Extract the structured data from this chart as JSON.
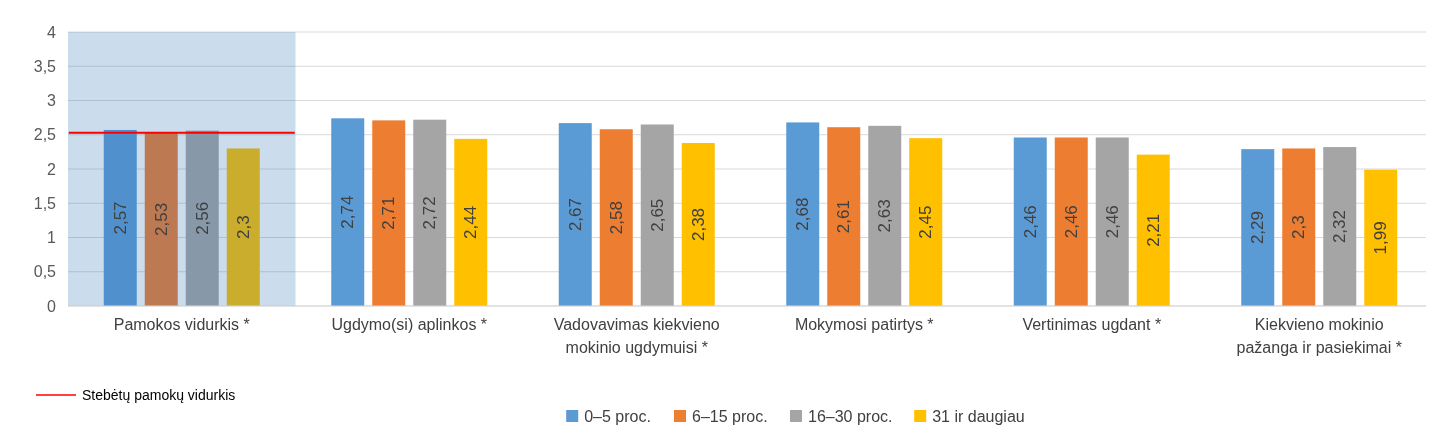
{
  "chart_data": {
    "type": "bar",
    "categories": [
      "Pamokos vidurkis *",
      "Ugdymo(si) aplinkos *",
      "Vadovavimas kiekvieno mokinio ugdymuisi *",
      "Mokymosi patirtys *",
      "Vertinimas ugdant  *",
      "Kiekvieno mokinio pažanga ir pasiekimai *"
    ],
    "series": [
      {
        "name": "0–5 proc.",
        "color": "#5b9bd5",
        "values": [
          2.57,
          2.74,
          2.67,
          2.68,
          2.46,
          2.29
        ],
        "value_labels": [
          "2,57",
          "2,74",
          "2,67",
          "2,68",
          "2,46",
          "2,29"
        ]
      },
      {
        "name": "6–15 proc.",
        "color": "#ed7d31",
        "values": [
          2.53,
          2.71,
          2.58,
          2.61,
          2.46,
          2.3
        ],
        "value_labels": [
          "2,53",
          "2,71",
          "2,58",
          "2,61",
          "2,46",
          "2,3"
        ]
      },
      {
        "name": "16–30 proc.",
        "color": "#a5a5a5",
        "values": [
          2.56,
          2.72,
          2.65,
          2.63,
          2.46,
          2.32
        ],
        "value_labels": [
          "2,56",
          "2,72",
          "2,65",
          "2,63",
          "2,46",
          "2,32"
        ]
      },
      {
        "name": "31 ir daugiau",
        "color": "#ffc000",
        "values": [
          2.3,
          2.44,
          2.38,
          2.45,
          2.21,
          1.99
        ],
        "value_labels": [
          "2,3",
          "2,44",
          "2,38",
          "2,45",
          "2,21",
          "1,99"
        ]
      }
    ],
    "ylim": [
      0,
      4
    ],
    "yticks": [
      0,
      {
        "value": 0.5,
        "label": "0,5"
      },
      1,
      {
        "value": 1.5,
        "label": "1,5"
      },
      2,
      {
        "value": 2.5,
        "label": "2,5"
      },
      3,
      {
        "value": 3.5,
        "label": "3,5"
      },
      4
    ],
    "grid": "y",
    "legend": "bottom",
    "ref_lines": [
      {
        "axis": "y",
        "value": 2.53,
        "label": "Stebėtų pamokų vidurkis",
        "color": "#ff0000"
      }
    ],
    "bands": [
      {
        "axis": "x",
        "from": "Pamokos vidurkis *",
        "to": "Pamokos vidurkis *",
        "color": "#2e75b6"
      }
    ]
  }
}
